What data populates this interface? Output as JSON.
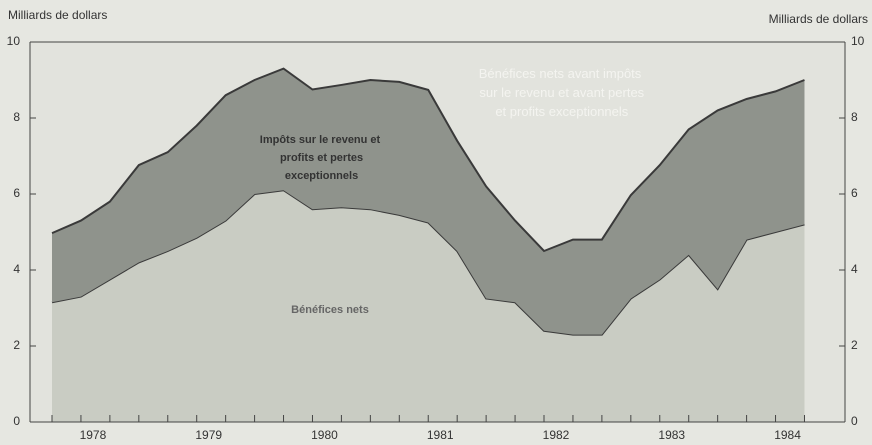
{
  "chart_data": {
    "type": "stacked_area",
    "y_label": "Milliards de dollars",
    "y2_label": "Milliards de dollars",
    "annotation": "Bénéfices nets avant impôts sur le revenu et avant pertes et profits exceptionnels",
    "x": [
      1977.75,
      1978,
      1978.25,
      1978.5,
      1978.75,
      1979,
      1979.25,
      1979.5,
      1979.75,
      1980,
      1980.25,
      1980.5,
      1980.75,
      1981,
      1981.25,
      1981.5,
      1981.75,
      1982,
      1982.25,
      1982.5,
      1982.75,
      1983,
      1983.25,
      1983.5,
      1983.75,
      1984,
      1984.25
    ],
    "series": [
      {
        "name": "Bénéfices nets",
        "color": "#c9ccc3",
        "values": [
          3.15,
          3.3,
          3.75,
          4.2,
          4.5,
          4.85,
          5.3,
          6.0,
          6.1,
          5.6,
          5.65,
          5.6,
          5.45,
          5.25,
          4.5,
          3.25,
          3.15,
          2.4,
          2.3,
          2.3,
          3.25,
          3.75,
          4.4,
          3.5,
          4.8,
          5.0,
          5.2
        ]
      },
      {
        "name": "Impôts sur le revenu et profits et pertes exceptionnels",
        "color": "#8f938c",
        "values": [
          1.82,
          2.0,
          2.05,
          2.56,
          2.6,
          2.95,
          3.3,
          3.0,
          3.2,
          3.15,
          3.22,
          3.4,
          3.5,
          3.49,
          2.9,
          2.95,
          2.15,
          2.1,
          2.5,
          2.5,
          2.72,
          3.01,
          3.3,
          4.7,
          3.7,
          3.7,
          3.8
        ]
      }
    ],
    "xlim": [
      1977.56,
      1984.6
    ],
    "xticks": [
      1978,
      1979,
      1980,
      1981,
      1982,
      1983,
      1984
    ],
    "ylim": [
      0,
      10
    ],
    "yticks": [
      0,
      2,
      4,
      6,
      8,
      10
    ],
    "y2lim": [
      0,
      10
    ],
    "y2ticks": [
      0,
      2,
      4,
      6,
      8,
      10
    ]
  }
}
